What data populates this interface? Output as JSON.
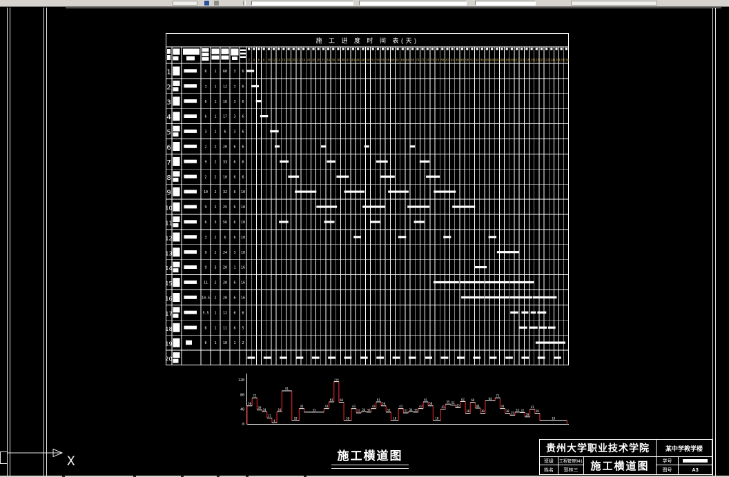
{
  "colors": {
    "canvas": "#000000",
    "line": "#ffffff",
    "histogram_riser": "#c42222",
    "day_number": "#c9a84c",
    "toolbar": "#d6d3ce"
  },
  "chart_data": [
    {
      "type": "gantt",
      "title": "施 工 进 度 时 间 表(天)",
      "x_axis": {
        "unit": "day",
        "min": 2,
        "step": 2,
        "max": 130
      },
      "rows": [
        {
          "no": "1",
          "values": [
            "6",
            "1",
            "60",
            "3",
            "6"
          ],
          "bars": [
            [
              0,
              3.1
            ]
          ]
        },
        {
          "no": "2",
          "values": [
            "3",
            "1",
            "12",
            "3",
            "6"
          ],
          "bars": [
            [
              2,
              5
            ]
          ]
        },
        {
          "no": "3",
          "values": [
            "6",
            "1",
            "16",
            "3",
            "6"
          ],
          "bars": [
            [
              3.8,
              6.2
            ]
          ]
        },
        {
          "no": "4",
          "values": [
            "6",
            "1",
            "17",
            "3",
            "6"
          ],
          "bars": [
            [
              5.5,
              8.7
            ]
          ]
        },
        {
          "no": "5",
          "values": [
            "3",
            "1",
            "6",
            "3",
            "6"
          ],
          "bars": [
            [
              9.5,
              13
            ]
          ]
        },
        {
          "no": "6",
          "values": [
            "2",
            "2",
            "20",
            "6",
            "6"
          ],
          "bars": [
            [
              11.4,
              13.4
            ],
            [
              30,
              32
            ],
            [
              47.5,
              49.5
            ],
            [
              66,
              68
            ]
          ]
        },
        {
          "no": "7",
          "values": [
            "9",
            "2",
            "33",
            "6",
            "6"
          ],
          "bars": [
            [
              13.4,
              17
            ],
            [
              32.4,
              35.8
            ],
            [
              52.3,
              57
            ],
            [
              69.8,
              73.8
            ]
          ]
        },
        {
          "no": "8",
          "values": [
            "2",
            "2",
            "10",
            "6",
            "6"
          ],
          "bars": [
            [
              16.8,
              21.2
            ],
            [
              36.3,
              41.3
            ],
            [
              54,
              59.8
            ],
            [
              72.4,
              78
            ]
          ]
        },
        {
          "no": "9",
          "values": [
            "10",
            "2",
            "32",
            "6",
            "10"
          ],
          "bars": [
            [
              19.5,
              28.2
            ],
            [
              39.4,
              47.6
            ],
            [
              57.1,
              65.4
            ],
            [
              75.5,
              84.4
            ]
          ]
        },
        {
          "no": "10",
          "values": [
            "9",
            "2",
            "25",
            "6",
            "10"
          ],
          "bars": [
            [
              28.2,
              36.5
            ],
            [
              46.8,
              56
            ],
            [
              64.9,
              73.8
            ],
            [
              83,
              92.2
            ]
          ]
        },
        {
          "no": "11",
          "values": [
            "6",
            "3",
            "56",
            "6",
            "10"
          ],
          "bars": [
            [
              13.1,
              16.9
            ],
            [
              31.3,
              35.5
            ],
            [
              49.9,
              54.1
            ],
            [
              67.5,
              71.7
            ]
          ]
        },
        {
          "no": "12",
          "values": [
            "3",
            "2",
            "6",
            "6",
            "10"
          ],
          "bars": [
            [
              43.2,
              46.2
            ],
            [
              61.2,
              64.4
            ],
            [
              79.4,
              82.5
            ],
            [
              97.6,
              100.8
            ]
          ]
        },
        {
          "no": "13",
          "values": [
            "9",
            "2",
            "24",
            "3",
            "10"
          ],
          "bars": [
            [
              101,
              105.8
            ],
            [
              105.2,
              110
            ]
          ]
        },
        {
          "no": "14",
          "values": [
            "9",
            "3",
            "20",
            "1",
            "16"
          ],
          "bars": [
            [
              92.1,
              96.9
            ]
          ]
        },
        {
          "no": "15",
          "values": [
            "11",
            "2",
            "20",
            "6",
            "16"
          ],
          "bars": [
            [
              75.4,
              85.7
            ],
            [
              85.9,
              95.8
            ],
            [
              96,
              106
            ],
            [
              106.2,
              115.9
            ]
          ]
        },
        {
          "no": "16",
          "values": [
            "10.5",
            "2",
            "20",
            "6",
            "16"
          ],
          "bars": [
            [
              86.6,
              95.8
            ],
            [
              96,
              106
            ],
            [
              106.2,
              115.3
            ],
            [
              115.5,
              125.1
            ]
          ]
        },
        {
          "no": "17",
          "values": [
            "5.5",
            "1",
            "12",
            "6",
            "6"
          ],
          "bars": [
            [
              106.4,
              109.6
            ],
            [
              110.9,
              113.7
            ],
            [
              114.6,
              116.7
            ],
            [
              117.3,
              120.9
            ]
          ]
        },
        {
          "no": "18",
          "values": [
            "6",
            "1",
            "11",
            "6",
            "5"
          ],
          "bars": [
            [
              110,
              113.2
            ],
            [
              114.2,
              117.4
            ],
            [
              118,
              121.1
            ],
            [
              121.6,
              124.6
            ]
          ]
        },
        {
          "no": "19",
          "values": [
            "6",
            "1",
            "10",
            "1",
            "2"
          ],
          "bars": [
            [
              116.6,
              128.6
            ]
          ]
        },
        {
          "no": "20",
          "values": [
            "",
            "",
            "",
            "",
            ""
          ],
          "bars": [
            [
              0.4,
              3.4
            ],
            [
              6.9,
              9.9
            ],
            [
              13.4,
              16.4
            ],
            [
              19.9,
              22.9
            ],
            [
              26.4,
              29.4
            ],
            [
              32.9,
              35.9
            ],
            [
              39.4,
              42.4
            ],
            [
              45.9,
              48.9
            ],
            [
              52.4,
              55.4
            ],
            [
              58.9,
              61.9
            ],
            [
              65.4,
              68.4
            ],
            [
              71.9,
              74.9
            ],
            [
              78.4,
              81.4
            ],
            [
              84.9,
              87.9
            ],
            [
              91.4,
              94.4
            ],
            [
              97.9,
              100.9
            ],
            [
              104.4,
              107.4
            ],
            [
              110.9,
              113.9
            ],
            [
              117.4,
              120.4
            ],
            [
              123.9,
              126.9
            ]
          ]
        }
      ]
    },
    {
      "type": "step-line",
      "name": "labor-resource-histogram",
      "yticks": [
        0,
        40,
        80,
        120
      ],
      "x_unit": "day",
      "steps": [
        [
          50,
          2
        ],
        [
          72,
          2
        ],
        [
          39,
          2
        ],
        [
          34,
          2
        ],
        [
          17,
          2
        ],
        [
          4,
          2
        ],
        [
          34,
          2
        ],
        [
          91,
          4
        ],
        [
          10,
          3
        ],
        [
          43,
          2
        ],
        [
          33,
          8
        ],
        [
          43,
          2
        ],
        [
          61,
          2
        ],
        [
          116,
          2
        ],
        [
          60,
          2
        ],
        [
          10,
          3
        ],
        [
          43,
          2
        ],
        [
          31,
          2
        ],
        [
          34,
          2
        ],
        [
          33,
          2
        ],
        [
          43,
          2
        ],
        [
          61,
          2
        ],
        [
          50,
          2
        ],
        [
          33,
          2
        ],
        [
          10,
          3
        ],
        [
          43,
          2
        ],
        [
          31,
          2
        ],
        [
          34,
          2
        ],
        [
          33,
          2
        ],
        [
          43,
          2
        ],
        [
          61,
          2
        ],
        [
          50,
          2
        ],
        [
          10,
          3
        ],
        [
          41,
          2
        ],
        [
          55,
          2
        ],
        [
          52,
          2
        ],
        [
          45,
          2
        ],
        [
          62,
          2
        ],
        [
          30,
          2
        ],
        [
          60,
          2
        ],
        [
          44,
          2
        ],
        [
          30,
          2
        ],
        [
          64,
          4
        ],
        [
          72,
          2
        ],
        [
          43,
          2
        ],
        [
          30,
          2
        ],
        [
          25,
          2
        ],
        [
          33,
          2
        ],
        [
          32,
          2
        ],
        [
          20,
          2
        ],
        [
          41,
          2
        ],
        [
          30,
          2
        ],
        [
          10,
          11
        ]
      ]
    }
  ],
  "labels": {
    "drawing_title": "施工横道图"
  },
  "ucs": {
    "x_label": "X"
  },
  "title_block": {
    "institution": "贵州大学职业技术学院",
    "project": "某中学教学楼",
    "class_label": "班级",
    "class_value": "工程管理041",
    "name_label": "姓名",
    "name_value": "郭林三",
    "sheet_title": "施工横道图",
    "student_id_label": "学号",
    "drawing_no_label": "图号",
    "drawing_no_value": "A3"
  }
}
